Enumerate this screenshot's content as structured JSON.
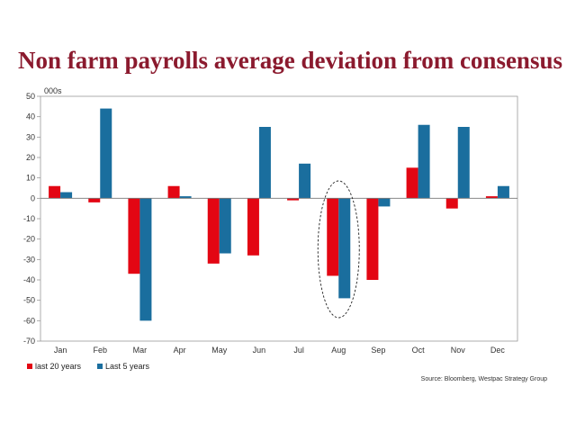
{
  "chart_data": {
    "type": "bar",
    "title": "Non farm payrolls average deviation from consensus",
    "unit_label": "000s",
    "categories": [
      "Jan",
      "Feb",
      "Mar",
      "Apr",
      "May",
      "Jun",
      "Jul",
      "Aug",
      "Sep",
      "Oct",
      "Nov",
      "Dec"
    ],
    "series": [
      {
        "name": "last 20 years",
        "color": "#e30613",
        "values": [
          6,
          -2,
          -37,
          6,
          -32,
          -28,
          -1,
          -38,
          -40,
          15,
          -5,
          1
        ]
      },
      {
        "name": "Last 5 years",
        "color": "#1a6e9e",
        "values": [
          3,
          44,
          -60,
          1,
          -27,
          35,
          17,
          -49,
          -4,
          36,
          35,
          6
        ]
      }
    ],
    "ylim": [
      -70,
      50
    ],
    "yticks": [
      50,
      40,
      30,
      20,
      10,
      0,
      -10,
      -20,
      -30,
      -40,
      -50,
      -60,
      -70
    ],
    "grid": false,
    "legend": "bottom-left",
    "highlight": {
      "category": "Aug",
      "shape": "dashed-ellipse"
    },
    "source": "Source: Bloomberg, Westpac Strategy Group"
  }
}
